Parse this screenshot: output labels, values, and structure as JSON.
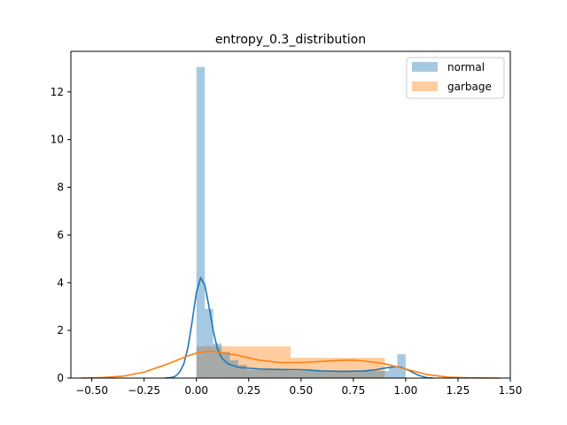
{
  "chart_data": {
    "type": "histogram-kde",
    "title": "entropy_0.3_distribution",
    "xlabel": "",
    "ylabel": "",
    "xlim": [
      -0.6,
      1.5
    ],
    "ylim": [
      0,
      13.7
    ],
    "xticks": [
      -0.5,
      -0.25,
      0.0,
      0.25,
      0.5,
      0.75,
      1.0,
      1.25,
      1.5
    ],
    "xtick_labels": [
      "−0.50",
      "−0.25",
      "0.00",
      "0.25",
      "0.50",
      "0.75",
      "1.00",
      "1.25",
      "1.50"
    ],
    "yticks": [
      0,
      2,
      4,
      6,
      8,
      10,
      12
    ],
    "ytick_labels": [
      "0",
      "2",
      "4",
      "6",
      "8",
      "10",
      "12"
    ],
    "grid": false,
    "legend_position": "top-right",
    "series": [
      {
        "name": "normal",
        "color": "#1f77b4",
        "bins": [
          {
            "x0": 0.0,
            "x1": 0.04,
            "y": 13.05
          },
          {
            "x0": 0.04,
            "x1": 0.08,
            "y": 2.9
          },
          {
            "x0": 0.08,
            "x1": 0.12,
            "y": 1.45
          },
          {
            "x0": 0.12,
            "x1": 0.16,
            "y": 1.1
          },
          {
            "x0": 0.16,
            "x1": 0.2,
            "y": 0.75
          },
          {
            "x0": 0.2,
            "x1": 0.24,
            "y": 0.55
          },
          {
            "x0": 0.24,
            "x1": 0.28,
            "y": 0.35
          },
          {
            "x0": 0.28,
            "x1": 0.32,
            "y": 0.35
          },
          {
            "x0": 0.32,
            "x1": 0.36,
            "y": 0.35
          },
          {
            "x0": 0.36,
            "x1": 0.4,
            "y": 0.35
          },
          {
            "x0": 0.4,
            "x1": 0.44,
            "y": 0.35
          },
          {
            "x0": 0.44,
            "x1": 0.48,
            "y": 0.3
          },
          {
            "x0": 0.48,
            "x1": 0.52,
            "y": 0.3
          },
          {
            "x0": 0.52,
            "x1": 0.56,
            "y": 0.3
          },
          {
            "x0": 0.56,
            "x1": 0.6,
            "y": 0.3
          },
          {
            "x0": 0.6,
            "x1": 0.64,
            "y": 0.3
          },
          {
            "x0": 0.64,
            "x1": 0.68,
            "y": 0.3
          },
          {
            "x0": 0.68,
            "x1": 0.72,
            "y": 0.3
          },
          {
            "x0": 0.72,
            "x1": 0.76,
            "y": 0.3
          },
          {
            "x0": 0.76,
            "x1": 0.8,
            "y": 0.3
          },
          {
            "x0": 0.8,
            "x1": 0.84,
            "y": 0.3
          },
          {
            "x0": 0.84,
            "x1": 0.88,
            "y": 0.3
          },
          {
            "x0": 0.88,
            "x1": 0.92,
            "y": 0.3
          },
          {
            "x0": 0.92,
            "x1": 0.96,
            "y": 0.45
          },
          {
            "x0": 0.96,
            "x1": 1.0,
            "y": 1.0
          }
        ],
        "kde": [
          [
            -0.15,
            0.0
          ],
          [
            -0.12,
            0.02
          ],
          [
            -0.1,
            0.08
          ],
          [
            -0.08,
            0.25
          ],
          [
            -0.06,
            0.6
          ],
          [
            -0.04,
            1.3
          ],
          [
            -0.02,
            2.4
          ],
          [
            0.0,
            3.6
          ],
          [
            0.02,
            4.2
          ],
          [
            0.04,
            3.9
          ],
          [
            0.06,
            3.0
          ],
          [
            0.08,
            2.0
          ],
          [
            0.1,
            1.25
          ],
          [
            0.12,
            0.85
          ],
          [
            0.15,
            0.6
          ],
          [
            0.2,
            0.45
          ],
          [
            0.3,
            0.38
          ],
          [
            0.4,
            0.36
          ],
          [
            0.5,
            0.35
          ],
          [
            0.6,
            0.3
          ],
          [
            0.7,
            0.28
          ],
          [
            0.8,
            0.3
          ],
          [
            0.86,
            0.35
          ],
          [
            0.9,
            0.42
          ],
          [
            0.95,
            0.48
          ],
          [
            0.98,
            0.45
          ],
          [
            1.02,
            0.3
          ],
          [
            1.06,
            0.12
          ],
          [
            1.1,
            0.02
          ],
          [
            1.13,
            0.0
          ]
        ]
      },
      {
        "name": "garbage",
        "color": "#ff7f0e",
        "bins": [
          {
            "x0": 0.0,
            "x1": 0.45,
            "y": 1.33
          },
          {
            "x0": 0.45,
            "x1": 0.9,
            "y": 0.85
          }
        ],
        "kde": [
          [
            -0.55,
            0.0
          ],
          [
            -0.45,
            0.02
          ],
          [
            -0.35,
            0.08
          ],
          [
            -0.25,
            0.25
          ],
          [
            -0.15,
            0.55
          ],
          [
            -0.05,
            0.9
          ],
          [
            0.0,
            1.05
          ],
          [
            0.05,
            1.12
          ],
          [
            0.1,
            1.1
          ],
          [
            0.2,
            0.95
          ],
          [
            0.3,
            0.75
          ],
          [
            0.4,
            0.65
          ],
          [
            0.5,
            0.65
          ],
          [
            0.6,
            0.7
          ],
          [
            0.7,
            0.75
          ],
          [
            0.75,
            0.75
          ],
          [
            0.8,
            0.72
          ],
          [
            0.9,
            0.6
          ],
          [
            1.0,
            0.38
          ],
          [
            1.1,
            0.15
          ],
          [
            1.2,
            0.04
          ],
          [
            1.3,
            0.01
          ],
          [
            1.45,
            0.0
          ]
        ]
      }
    ]
  }
}
